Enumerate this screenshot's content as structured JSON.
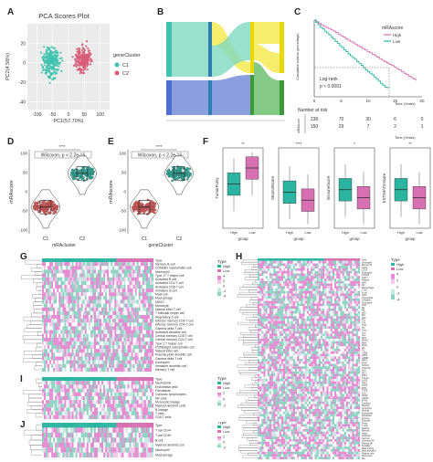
{
  "colors": {
    "c1": "#d65c78",
    "c2": "#3fc3ae",
    "cluster_c1": "#e75c5c",
    "cluster_c2": "#2fb5a3",
    "high": "#2bb5a0",
    "low": "#d670b0",
    "sankey_blue": "#6e86d6",
    "sankey_teal": "#7fd8c0",
    "sankey_yellow": "#f6ea53",
    "sankey_green": "#5bb85b",
    "heat_pink": "#e58bd2",
    "heat_teal": "#8fd3c3"
  },
  "panel_letters": [
    "A",
    "B",
    "C",
    "D",
    "E",
    "F",
    "G",
    "H",
    "I",
    "J"
  ],
  "panelA": {
    "title": "PCA Scores Plot",
    "xlabel": "PC1(57.70%)",
    "ylabel": "PC2(4.56%)",
    "xticks": [
      "-100",
      "-50",
      "0",
      "50",
      "100"
    ],
    "yticks": [
      "-40",
      "-20",
      "0",
      "20"
    ],
    "legend_title": "geneCluster",
    "legend_items": [
      "C1",
      "C2"
    ]
  },
  "panelC": {
    "legend_title": "mRAscore",
    "legend_items": [
      "High",
      "Low"
    ],
    "logrank": "Log-rank",
    "pvalue": "p < 0.0001",
    "xlabel": "Time (Years)",
    "ylabel": "Cumulative survival (percentage)",
    "xticks": [
      "0",
      "5",
      "10",
      "15",
      "20"
    ],
    "risk_title": "Number at risk",
    "risk_axis": "mRAscore",
    "risk_rows": [
      [
        "238",
        "70",
        "30",
        "6",
        "0"
      ],
      [
        "150",
        "29",
        "7",
        "2",
        "1"
      ]
    ],
    "risk_xlabel": "Time (Years)"
  },
  "panelD": {
    "annotation": "Wilcoxon, p < 2.2e-16",
    "sig": "****",
    "ylabel": "mRAscore",
    "xlabel": "mRAcluster",
    "categories": [
      "C1",
      "C2"
    ],
    "yticks": [
      "100",
      "50",
      "0",
      "-50",
      "-100"
    ]
  },
  "panelE": {
    "annotation": "Wilcoxon, p < 2.2e-16",
    "sig": "****",
    "ylabel": "mRAscore",
    "xlabel": "geneCluster",
    "categories": [
      "C1",
      "C2"
    ],
    "yticks": [
      "100",
      "50",
      "0",
      "-50",
      "-100"
    ]
  },
  "panelF": {
    "plots": [
      {
        "ylabel": "TumorPurity",
        "sig": "**",
        "xlabel": "group",
        "cats": [
          "High",
          "Low"
        ]
      },
      {
        "ylabel": "StromalScore",
        "sig": "****",
        "xlabel": "group",
        "cats": [
          "High",
          "Low"
        ]
      },
      {
        "ylabel": "ImmuneScore",
        "sig": "*",
        "xlabel": "group",
        "cats": [
          "High",
          "Low"
        ]
      },
      {
        "ylabel": "ESTIMATEScore",
        "sig": "**",
        "xlabel": "group",
        "cats": [
          "High",
          "Low"
        ]
      }
    ]
  },
  "panelG": {
    "legend_title": "Type",
    "legend_items": [
      "High",
      "Low"
    ],
    "scale": [
      "4",
      "2",
      "0",
      "-2",
      "-4"
    ],
    "rows": [
      "Type",
      "Memory B cell",
      "CD56dim natural killer cell",
      "Neutrophil",
      "Type 17 T helper cell",
      "Activated B cell",
      "Activated CD4 T cell",
      "Activated CD8 T cell",
      "Immature B cell",
      "Mast cell",
      "Macrophage",
      "MDSC",
      "Monocyte",
      "Natural killer T cell",
      "T follicular helper cell",
      "Regulatory T cell",
      "Effector memory CD8 T cell",
      "Effector memory CD4 T cell",
      "Gamma delta T cell",
      "Activated dendritic cell",
      "Central memory CD8 T cell",
      "Central memory CD4 T cell",
      "Type 1 T helper cell",
      "CD56bright natural killer cell",
      "Natural killer cell",
      "Plasmacytoid dendritic cell",
      "Gamma delta T cell",
      "Eosinophil",
      "Immature dendritic cell",
      "Memory T cell"
    ]
  },
  "panelH": {
    "legend_title": "Type",
    "legend_items": [
      "High",
      "Low"
    ],
    "scale": [
      "4",
      "2",
      "0",
      "-2",
      "-4"
    ],
    "rows": [
      "Type",
      "Neutrophil",
      "Memory B",
      "CD14",
      "CD16",
      "Eosinophil",
      "CXCR3",
      "CD8 T",
      "Plasma",
      "MHC",
      "NK",
      "Macrophage",
      "T cell",
      "B cell",
      "mDC",
      "Neutrophils",
      "Activated",
      "Neutrophil",
      "CD4",
      "M1",
      "M2",
      "aDC",
      "iDC",
      "pDC",
      "Th1",
      "Th2",
      "Th17",
      "Tfh",
      "Treg",
      "Tcm",
      "Tem",
      "NKT",
      "MDSC",
      "Mast",
      "Mono",
      "DC",
      "TIL",
      "CD56",
      "CD57",
      "GZMB",
      "PRF1",
      "IFNG",
      "CXCL9",
      "CXCL10",
      "HLA",
      "PD1",
      "PDL1",
      "CTLA4",
      "LAG3",
      "TIM3",
      "TIGIT",
      "IDO1",
      "TGFB",
      "IL10",
      "VEGF",
      "CD276",
      "B7H3",
      "Cytotoxic",
      "Myeloid",
      "Lymphoid",
      "Stromal",
      "Endothelial",
      "Fibroblast",
      "Immune",
      "Estimate",
      "Purity",
      "T regs",
      "Resting",
      "Memory",
      "Naive",
      "Follicular",
      "Gamma",
      "Activated NK",
      "Resting NK",
      "Dendritic",
      "Mast resting",
      "Mast activated",
      "Plasma cells",
      "Monocytes",
      "M0"
    ]
  },
  "panelI": {
    "legend_title": "Type",
    "legend_items": [
      "High",
      "Low"
    ],
    "scale": [
      "2",
      "0",
      "-2"
    ],
    "rows": [
      "Type",
      "Neutrophils",
      "Endothelial cells",
      "Fibroblasts",
      "Cytotoxic lymphocytes",
      "NK cells",
      "Monocytic lineage",
      "Myeloid dendritic cells",
      "B lineage",
      "T cells",
      "CD8 T cells"
    ]
  },
  "panelJ": {
    "legend_title": "Type",
    "legend_items": [
      "High",
      "Low"
    ],
    "scale": [
      "2",
      "0",
      "-2"
    ],
    "rows": [
      "Type",
      "T cell CD4+",
      "T cell CD8+",
      "B cell",
      "Myeloid dendritic cell",
      "Neutrophil",
      "Macrophage"
    ]
  }
}
